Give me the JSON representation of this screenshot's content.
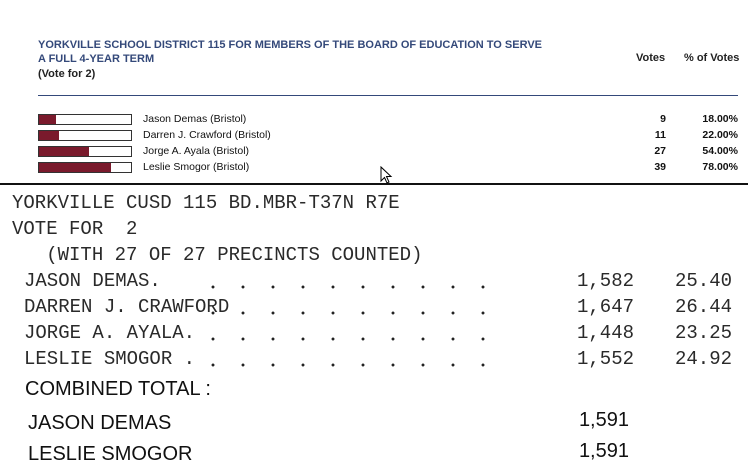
{
  "official": {
    "title_lines": [
      "YORKVILLE SCHOOL DISTRICT 115 FOR MEMBERS OF THE BOARD OF EDUCATION TO SERVE",
      "A FULL 4-YEAR TERM"
    ],
    "vote_for": "(Vote for 2)",
    "headers": [
      "Votes",
      "% of Votes"
    ],
    "candidates": [
      {
        "name": "Jason Demas (Bristol)",
        "votes": 9,
        "percent": {
          "value": 18,
          "label": "18.00%"
        }
      },
      {
        "name": "Darren J. Crawford (Bristol)",
        "votes": 11,
        "percent": {
          "value": 22,
          "label": "22.00%"
        }
      },
      {
        "name": "Jorge A. Ayala (Bristol)",
        "votes": 27,
        "percent": {
          "value": 54,
          "label": "54.00%"
        }
      },
      {
        "name": "Leslie Smogor (Bristol)",
        "votes": 39,
        "percent": {
          "value": 78,
          "label": "78.00%"
        }
      }
    ]
  },
  "printout": {
    "lines": [
      "YORKVILLE CUSD 115 BD.MBR-T37N R7E",
      "VOTE FOR  2",
      "   (WITH 27 OF 27 PRECINCTS COUNTED)"
    ],
    "rows": [
      [
        "JASON DEMAS.",
        "1,582",
        "25.40"
      ],
      [
        "DARREN J. CRAWFORD",
        "1,647",
        "26.44"
      ],
      [
        "JORGE A. AYALA.",
        "1,448",
        "23.25"
      ],
      [
        "LESLIE SMOGOR .",
        "1,552",
        "24.92"
      ]
    ]
  },
  "combined": {
    "label": "COMBINED TOTAL :",
    "rows": [
      [
        "JASON DEMAS",
        "1,591"
      ],
      [
        "LESLIE SMOGOR",
        "1,591"
      ]
    ]
  }
}
